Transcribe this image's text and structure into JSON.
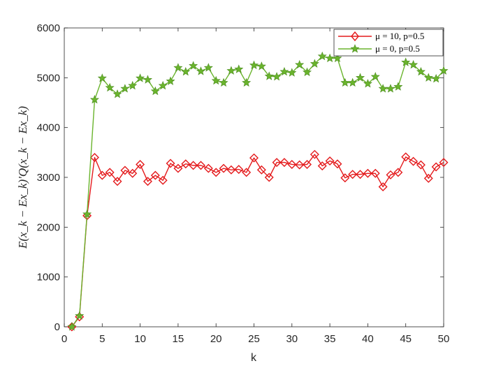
{
  "chart_data": {
    "type": "line",
    "title": "",
    "xlabel": "k",
    "ylabel": "E(x_k − Ex_k)′Q(x_k − Ex_k)",
    "xlim": [
      0,
      50
    ],
    "ylim": [
      0,
      6000
    ],
    "xticks": [
      0,
      5,
      10,
      15,
      20,
      25,
      30,
      35,
      40,
      45,
      50
    ],
    "yticks": [
      0,
      1000,
      2000,
      3000,
      4000,
      5000,
      6000
    ],
    "grid": false,
    "legend_position": "top-right",
    "x": [
      1,
      2,
      3,
      4,
      5,
      6,
      7,
      8,
      9,
      10,
      11,
      12,
      13,
      14,
      15,
      16,
      17,
      18,
      19,
      20,
      21,
      22,
      23,
      24,
      25,
      26,
      27,
      28,
      29,
      30,
      31,
      32,
      33,
      34,
      35,
      36,
      37,
      38,
      39,
      40,
      41,
      42,
      43,
      44,
      45,
      46,
      47,
      48,
      49,
      50
    ],
    "series": [
      {
        "name": "μ = 10, p=0.5",
        "legend_label": "μ = 10, p=0.5",
        "color": "#e41a1c",
        "marker": "diamond",
        "values": [
          0,
          200,
          2230,
          3400,
          3040,
          3100,
          2920,
          3140,
          3080,
          3260,
          2920,
          3040,
          2940,
          3280,
          3180,
          3270,
          3240,
          3240,
          3180,
          3100,
          3180,
          3150,
          3160,
          3100,
          3390,
          3150,
          3000,
          3300,
          3300,
          3260,
          3250,
          3260,
          3460,
          3230,
          3330,
          3270,
          2990,
          3060,
          3060,
          3080,
          3080,
          2810,
          3050,
          3100,
          3410,
          3320,
          3250,
          2980,
          3210,
          3300
        ]
      },
      {
        "name": "μ = 0, p=0.5",
        "legend_label": "μ = 0, p=0.5",
        "color": "#6ab42d",
        "marker": "star",
        "values": [
          0,
          220,
          2260,
          4560,
          4990,
          4800,
          4670,
          4780,
          4840,
          4990,
          4960,
          4730,
          4840,
          4930,
          5200,
          5120,
          5240,
          5130,
          5200,
          4940,
          4900,
          5140,
          5170,
          4900,
          5250,
          5230,
          5030,
          5020,
          5120,
          5100,
          5260,
          5110,
          5280,
          5430,
          5390,
          5390,
          4900,
          4900,
          5000,
          4880,
          5020,
          4780,
          4780,
          4820,
          5310,
          5260,
          5120,
          5000,
          4980,
          5140
        ]
      }
    ]
  }
}
